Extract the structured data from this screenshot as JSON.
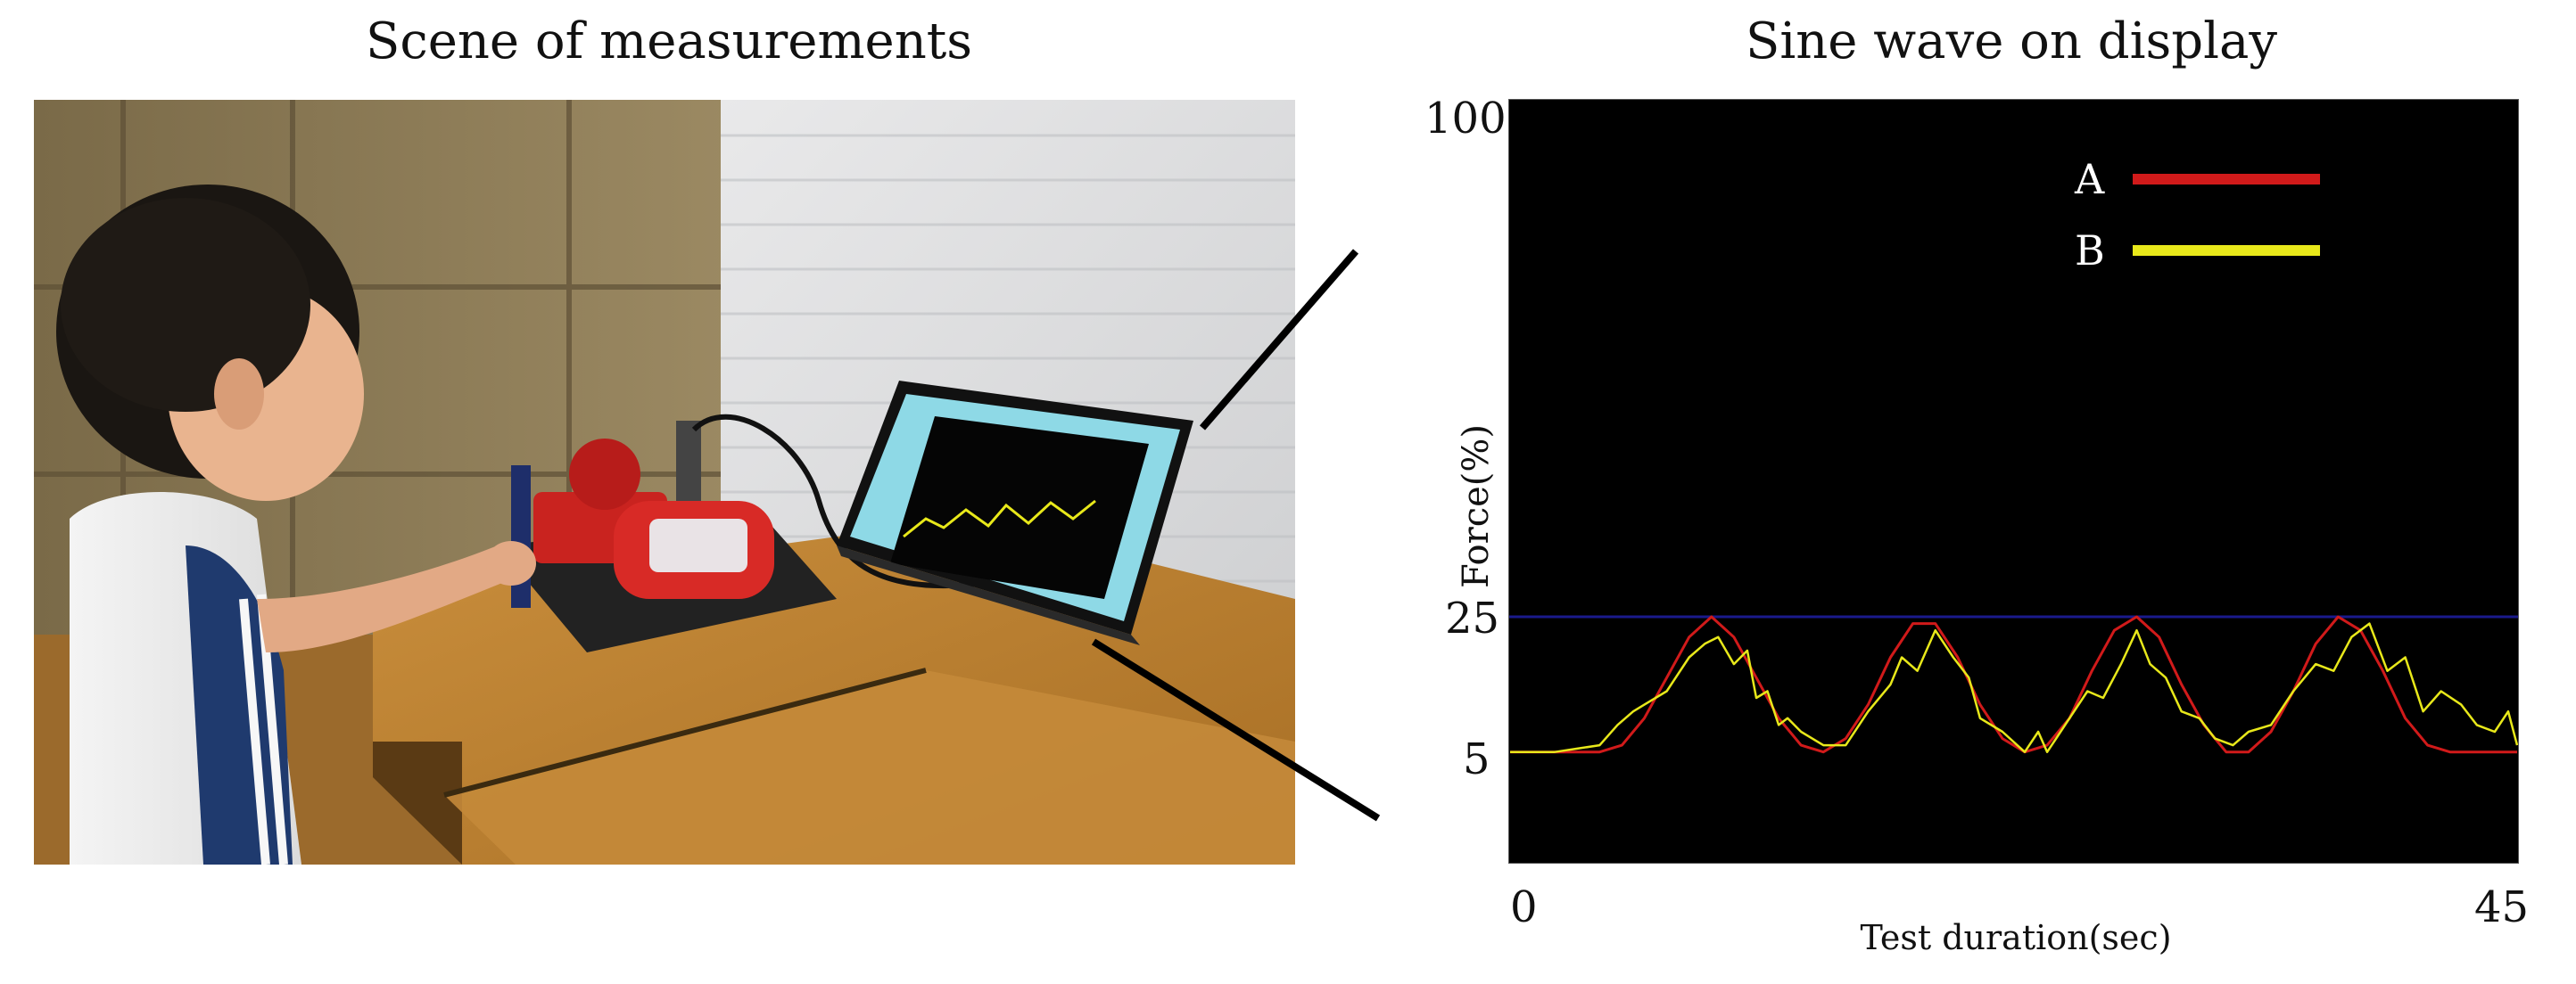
{
  "left_panel": {
    "title": "Scene of measurements"
  },
  "right_panel": {
    "title": "Sine wave on display"
  },
  "chart_data": {
    "type": "line",
    "title": "Sine wave on display",
    "xlabel": "Test duration(sec)",
    "ylabel": "Force(%)",
    "xlim": [
      0,
      45
    ],
    "ylim": [
      0,
      100
    ],
    "x_ticks": [
      "0",
      "45"
    ],
    "y_ticks": [
      "100",
      "25",
      "5"
    ],
    "reference_line": {
      "y": 25,
      "color": "#1a1a8c"
    },
    "background": "#000000",
    "legend": {
      "placement": "top-right"
    },
    "series": [
      {
        "name": "A",
        "color": "#d11a1a",
        "x": [
          0,
          1,
          2,
          3,
          4,
          5,
          6,
          7,
          8,
          9,
          10,
          11,
          12,
          13,
          14,
          15,
          16,
          17,
          18,
          19,
          20,
          21,
          22,
          23,
          24,
          25,
          26,
          27,
          28,
          29,
          30,
          31,
          32,
          33,
          34,
          35,
          36,
          37,
          38,
          39,
          40,
          41,
          42,
          43,
          44,
          45
        ],
        "y": [
          5,
          5,
          5,
          5,
          5,
          6,
          10,
          16,
          22,
          25,
          22,
          16,
          10,
          6,
          5,
          7,
          12,
          19,
          24,
          24,
          19,
          12,
          7,
          5,
          6,
          10,
          17,
          23,
          25,
          22,
          15,
          9,
          5,
          5,
          8,
          14,
          21,
          25,
          23,
          17,
          10,
          6,
          5,
          5,
          5,
          5
        ]
      },
      {
        "name": "B",
        "color": "#e8e81a",
        "x": [
          0,
          1,
          2,
          3,
          4,
          4.8,
          5.5,
          6,
          7,
          8,
          8.7,
          9.3,
          10,
          10.6,
          11,
          11.5,
          12,
          12.4,
          13,
          14,
          15,
          16,
          17,
          17.5,
          18.2,
          19,
          19.8,
          20.5,
          21,
          22,
          23,
          23.6,
          24,
          24.4,
          25,
          25.8,
          26.5,
          27.3,
          28,
          28.6,
          29.3,
          30,
          30.8,
          31.5,
          32.3,
          33,
          34,
          35,
          36,
          36.8,
          37.6,
          38.4,
          39.2,
          40,
          40.8,
          41.6,
          42.5,
          43.2,
          44,
          44.6,
          45
        ],
        "y": [
          5,
          5,
          5,
          5.5,
          6,
          9,
          11,
          12,
          14,
          19,
          21,
          22,
          18,
          20,
          13,
          14,
          9,
          10,
          8,
          6,
          6,
          11,
          15,
          19,
          17,
          23,
          19,
          16,
          10,
          8,
          5,
          8,
          5,
          7,
          10,
          14,
          13,
          18,
          23,
          18,
          16,
          11,
          10,
          7,
          6,
          8,
          9,
          14,
          18,
          17,
          22,
          24,
          17,
          19,
          11,
          14,
          12,
          9,
          8,
          11,
          6
        ]
      }
    ]
  }
}
